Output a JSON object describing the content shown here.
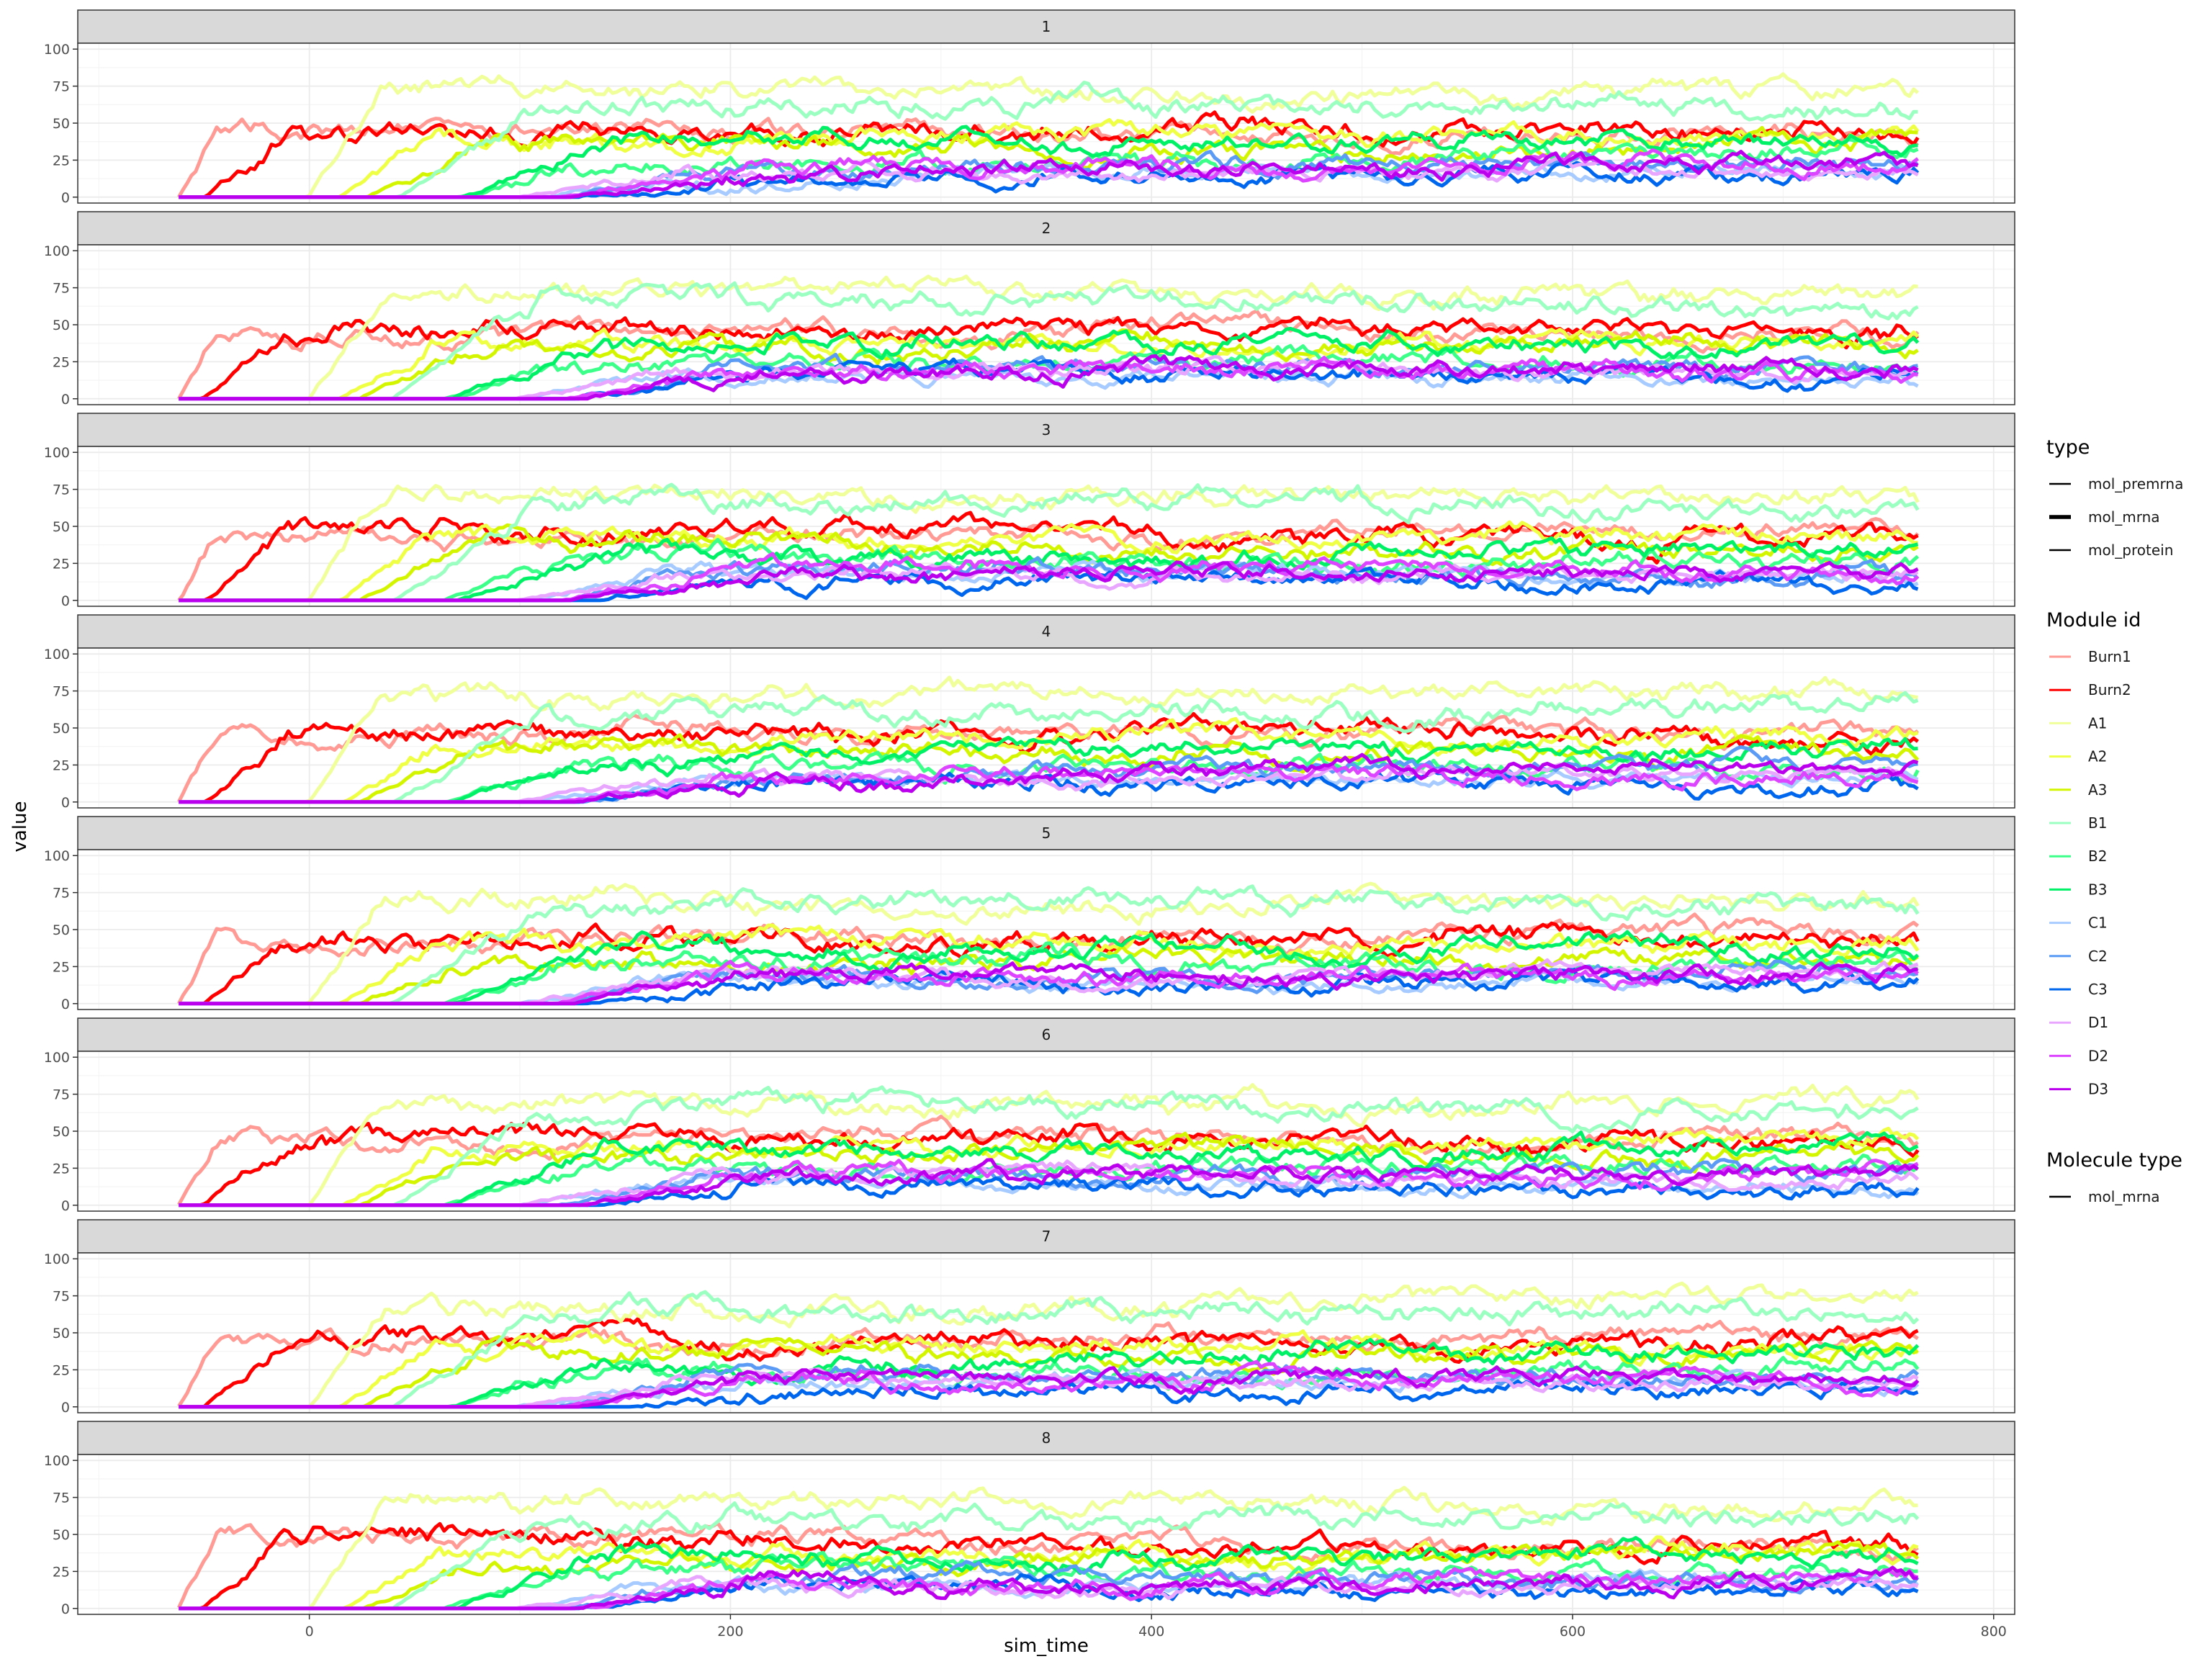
{
  "chart_data": {
    "type": "line",
    "xlabel": "sim_time",
    "ylabel": "value",
    "x_ticks": [
      0,
      200,
      400,
      600,
      800
    ],
    "y_ticks": [
      0,
      25,
      50,
      75,
      100
    ],
    "xlim": [
      -110,
      810
    ],
    "ylim": [
      -4,
      104
    ],
    "grid": true,
    "legend_position": "right",
    "panels": [
      "1",
      "2",
      "3",
      "4",
      "5",
      "6",
      "7",
      "8"
    ],
    "legend": {
      "type": {
        "title": "type",
        "entries": [
          "mol_premrna",
          "mol_mrna",
          "mol_protein"
        ]
      },
      "module": {
        "title": "Module id",
        "entries": [
          "Burn1",
          "Burn2",
          "A1",
          "A2",
          "A3",
          "B1",
          "B2",
          "B3",
          "C1",
          "C2",
          "C3",
          "D1",
          "D2",
          "D3"
        ]
      },
      "molecule": {
        "title": "Molecule type",
        "entries": [
          "mol_mrna"
        ]
      }
    },
    "series": [
      {
        "name": "Burn1",
        "color": "#FF9A94",
        "onset": -62,
        "rise": 18,
        "level": 45,
        "noise": 8
      },
      {
        "name": "Burn2",
        "color": "#FF0000",
        "onset": -50,
        "rise": 40,
        "level": 45,
        "noise": 9
      },
      {
        "name": "A1",
        "color": "#F0FF9A",
        "onset": 0,
        "rise": 35,
        "level": 70,
        "noise": 9
      },
      {
        "name": "A2",
        "color": "#EEFF44",
        "onset": 15,
        "rise": 45,
        "level": 40,
        "noise": 8
      },
      {
        "name": "A3",
        "color": "#D4F500",
        "onset": 25,
        "rise": 55,
        "level": 35,
        "noise": 8
      },
      {
        "name": "B1",
        "color": "#9CFFC2",
        "onset": 40,
        "rise": 70,
        "level": 65,
        "noise": 9
      },
      {
        "name": "B2",
        "color": "#3CFF8A",
        "onset": 65,
        "rise": 60,
        "level": 25,
        "noise": 8
      },
      {
        "name": "B3",
        "color": "#00F066",
        "onset": 70,
        "rise": 70,
        "level": 35,
        "noise": 8
      },
      {
        "name": "C1",
        "color": "#A8CBFF",
        "onset": 100,
        "rise": 80,
        "level": 15,
        "noise": 6
      },
      {
        "name": "C2",
        "color": "#5C9BF5",
        "onset": 120,
        "rise": 80,
        "level": 20,
        "noise": 7
      },
      {
        "name": "C3",
        "color": "#0066EE",
        "onset": 130,
        "rise": 90,
        "level": 12,
        "noise": 7
      },
      {
        "name": "D1",
        "color": "#E8A6FF",
        "onset": 100,
        "rise": 80,
        "level": 18,
        "noise": 6
      },
      {
        "name": "D2",
        "color": "#DD44FF",
        "onset": 120,
        "rise": 90,
        "level": 20,
        "noise": 7
      },
      {
        "name": "D3",
        "color": "#BB00EE",
        "onset": 125,
        "rise": 90,
        "level": 20,
        "noise": 7
      }
    ],
    "x_start": -62,
    "x_end": 765
  }
}
